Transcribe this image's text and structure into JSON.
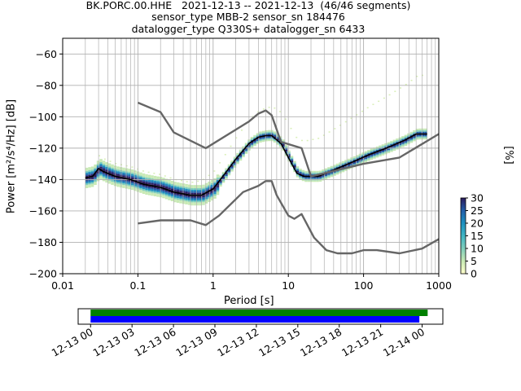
{
  "chart_data": [
    {
      "type": "heatmap",
      "title_lines": [
        "BK.PORC.00.HHE   2021-12-13 -- 2021-12-13  (46/46 segments)",
        "sensor_type MBB-2 sensor_sn 184476",
        "datalogger_type Q330S+ datalogger_sn 6433"
      ],
      "xlabel": "Period [s]",
      "ylabel": "Power [m²/s⁴/Hz] [dB]",
      "x_scale": "log",
      "xlim": [
        0.01,
        1000
      ],
      "ylim": [
        -200,
        -50
      ],
      "x_ticks": [
        {
          "value": 0.01,
          "label": "0.01"
        },
        {
          "value": 0.1,
          "label": "0.1"
        },
        {
          "value": 1,
          "label": "1"
        },
        {
          "value": 10,
          "label": "10"
        },
        {
          "value": 100,
          "label": "100"
        },
        {
          "value": 1000,
          "label": "1000"
        }
      ],
      "y_ticks": [
        -200,
        -180,
        -160,
        -140,
        -120,
        -100,
        -80,
        -60
      ],
      "grid": true,
      "series": [
        {
          "role": "mode",
          "color": "#000000",
          "points": [
            [
              0.02,
              -139
            ],
            [
              0.025,
              -138
            ],
            [
              0.03,
              -133
            ],
            [
              0.035,
              -135
            ],
            [
              0.05,
              -138
            ],
            [
              0.08,
              -140
            ],
            [
              0.12,
              -143
            ],
            [
              0.2,
              -145
            ],
            [
              0.3,
              -148
            ],
            [
              0.5,
              -150
            ],
            [
              0.7,
              -150
            ],
            [
              1,
              -146
            ],
            [
              1.5,
              -135
            ],
            [
              2,
              -127
            ],
            [
              3,
              -117
            ],
            [
              4,
              -113
            ],
            [
              5,
              -112
            ],
            [
              6,
              -112
            ],
            [
              8,
              -117
            ],
            [
              10,
              -126
            ],
            [
              13,
              -136
            ],
            [
              16,
              -138
            ],
            [
              25,
              -138
            ],
            [
              40,
              -134
            ],
            [
              70,
              -129
            ],
            [
              120,
              -124
            ],
            [
              200,
              -120
            ],
            [
              350,
              -115
            ],
            [
              500,
              -111
            ],
            [
              700,
              -111
            ]
          ]
        },
        {
          "role": "noise-model-high",
          "color": "#666666",
          "points": [
            [
              0.1,
              -91
            ],
            [
              0.2,
              -97
            ],
            [
              0.3,
              -110
            ],
            [
              0.8,
              -120
            ],
            [
              3,
              -103
            ],
            [
              4,
              -98
            ],
            [
              5,
              -96
            ],
            [
              6,
              -99
            ],
            [
              8,
              -116
            ],
            [
              15,
              -120
            ],
            [
              20,
              -138
            ],
            [
              30,
              -136
            ],
            [
              100,
              -130
            ],
            [
              300,
              -126
            ],
            [
              1000,
              -111
            ]
          ]
        },
        {
          "role": "noise-model-low",
          "color": "#666666",
          "points": [
            [
              0.1,
              -168
            ],
            [
              0.2,
              -166
            ],
            [
              0.5,
              -166
            ],
            [
              0.8,
              -169
            ],
            [
              1.2,
              -163
            ],
            [
              2.5,
              -148
            ],
            [
              4,
              -144
            ],
            [
              5,
              -141
            ],
            [
              6,
              -141
            ],
            [
              7,
              -150
            ],
            [
              10,
              -163
            ],
            [
              12,
              -165
            ],
            [
              15,
              -162
            ],
            [
              22,
              -177
            ],
            [
              32,
              -185
            ],
            [
              45,
              -187
            ],
            [
              70,
              -187
            ],
            [
              100,
              -185
            ],
            [
              150,
              -185
            ],
            [
              300,
              -187
            ],
            [
              600,
              -184
            ],
            [
              1000,
              -178
            ]
          ]
        }
      ],
      "colorbar": {
        "label": "[%]",
        "range": [
          0,
          30
        ],
        "ticks": [
          0,
          5,
          10,
          15,
          20,
          25,
          30
        ],
        "colors": [
          "#ffffcc",
          "#c7e9b4",
          "#7fcdbb",
          "#41b6c4",
          "#1d91c0",
          "#225ea8",
          "#2c1a5c"
        ]
      }
    },
    {
      "type": "timeline",
      "x_ticks": [
        "12-13 00",
        "12-13 03",
        "12-13 06",
        "12-13 09",
        "12-13 12",
        "12-13 15",
        "12-13 18",
        "12-13 21",
        "12-14 00"
      ],
      "bars": [
        {
          "color": "#008000",
          "start_hour": 0,
          "end_hour": 24.4
        },
        {
          "color": "#0000ff",
          "start_hour": 0,
          "end_hour": 23.8
        }
      ]
    }
  ]
}
